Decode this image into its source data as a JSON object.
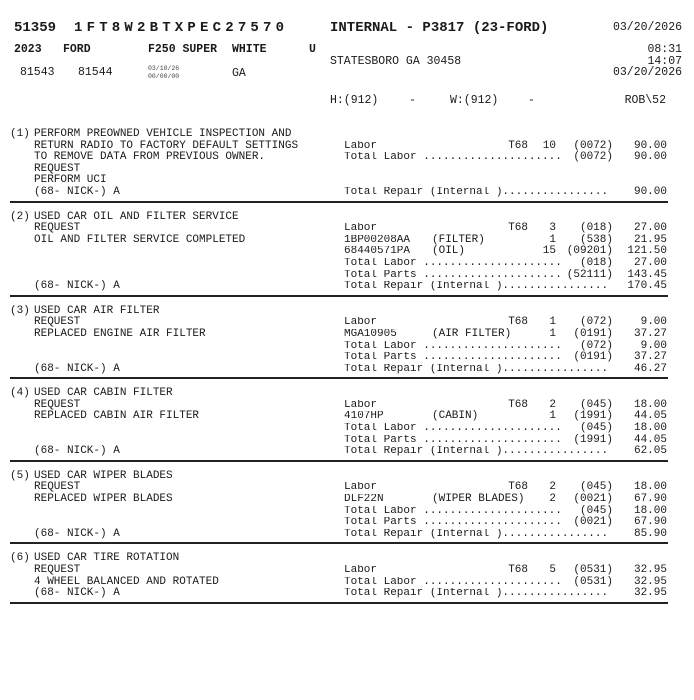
{
  "header": {
    "ro_number": "51359",
    "vin": "1FT8W2BTXPEC27570",
    "title": "INTERNAL - P3817 (23-FORD)",
    "date_top": "03/20/2026",
    "year": "2023",
    "make": "FORD",
    "model": "F250 SUPER",
    "color": "WHITE",
    "flag": "U",
    "city": "STATESBORO GA 30458",
    "time_1": "08:31",
    "time_2": "14:07",
    "date_2": "03/20/2026",
    "mileage_in": "81543",
    "mileage_out": "81544",
    "small_date_1": "03/10/26",
    "small_date_2": "00/00/00",
    "state": "GA",
    "home_phone": "H:(912)",
    "home_dash": "-",
    "work_phone": "W:(912)",
    "work_dash": "-",
    "advisor": "ROB\\52"
  },
  "jobs": [
    {
      "num": "(1)",
      "left": [
        "PERFORM PREOWNED VEHICLE INSPECTION AND",
        "RETURN RADIO TO FACTORY DEFAULT SETTINGS",
        "TO REMOVE DATA FROM PREVIOUS OWNER.",
        "REQUEST",
        "PERFORM UCI",
        "(68- NICK-) A"
      ],
      "right": [
        {},
        {
          "desc": "Labor",
          "tech": "T68",
          "qty": "10",
          "code": "(0072)",
          "amount": "90.00"
        },
        {
          "desc": "Total Labor .....................",
          "type": "tot",
          "code": "(0072)",
          "amount": "90.00"
        },
        {},
        {},
        {
          "desc": "Total Repair (Internal )................",
          "type": "rep",
          "amount": "90.00"
        }
      ]
    },
    {
      "num": "(2)",
      "left": [
        "USED CAR OIL AND FILTER SERVICE",
        "REQUEST",
        "OIL AND FILTER SERVICE COMPLETED",
        "",
        "",
        "",
        "(68- NICK-) A"
      ],
      "right": [
        {},
        {
          "desc": "Labor",
          "tech": "T68",
          "qty": "3",
          "code": "(018)",
          "amount": "27.00"
        },
        {
          "desc": "1BP00208AA",
          "note": "(FILTER)",
          "qty": "1",
          "code": "(538)",
          "amount": "21.95"
        },
        {
          "desc": "68440571PA",
          "note": "(OIL)",
          "qty": "15",
          "code": "(09201)",
          "amount": "121.50"
        },
        {
          "desc": "Total Labor .....................",
          "type": "tot",
          "code": "(018)",
          "amount": "27.00"
        },
        {
          "desc": "Total Parts .....................",
          "type": "tot",
          "code": "(52111)",
          "amount": "143.45"
        },
        {
          "desc": "Total Repair (Internal )................",
          "type": "rep",
          "amount": "170.45"
        }
      ]
    },
    {
      "num": "(3)",
      "left": [
        "USED CAR AIR FILTER",
        "REQUEST",
        "REPLACED ENGINE AIR FILTER",
        "",
        "",
        "(68- NICK-) A"
      ],
      "right": [
        {},
        {
          "desc": "Labor",
          "tech": "T68",
          "qty": "1",
          "code": "(072)",
          "amount": "9.00"
        },
        {
          "desc": "MGA10905",
          "note": "(AIR FILTER)",
          "qty": "1",
          "code": "(0191)",
          "amount": "37.27"
        },
        {
          "desc": "Total Labor .....................",
          "type": "tot",
          "code": "(072)",
          "amount": "9.00"
        },
        {
          "desc": "Total Parts .....................",
          "type": "tot",
          "code": "(0191)",
          "amount": "37.27"
        },
        {
          "desc": "Total Repair (Internal )................",
          "type": "rep",
          "amount": "46.27"
        }
      ]
    },
    {
      "num": "(4)",
      "left": [
        "USED CAR CABIN FILTER",
        "REQUEST",
        "REPLACED CABIN AIR FILTER",
        "",
        "",
        "(68- NICK-) A"
      ],
      "right": [
        {},
        {
          "desc": "Labor",
          "tech": "T68",
          "qty": "2",
          "code": "(045)",
          "amount": "18.00"
        },
        {
          "desc": "4107HP",
          "note": "(CABIN)",
          "qty": "1",
          "code": "(1991)",
          "amount": "44.05"
        },
        {
          "desc": "Total Labor .....................",
          "type": "tot",
          "code": "(045)",
          "amount": "18.00"
        },
        {
          "desc": "Total Parts .....................",
          "type": "tot",
          "code": "(1991)",
          "amount": "44.05"
        },
        {
          "desc": "Total Repair (Internal )................",
          "type": "rep",
          "amount": "62.05"
        }
      ]
    },
    {
      "num": "(5)",
      "left": [
        "USED CAR WIPER BLADES",
        "REQUEST",
        "REPLACED WIPER BLADES",
        "",
        "",
        "(68- NICK-) A"
      ],
      "right": [
        {},
        {
          "desc": "Labor",
          "tech": "T68",
          "qty": "2",
          "code": "(045)",
          "amount": "18.00"
        },
        {
          "desc": "DLF22N",
          "note": "(WIPER BLADES)",
          "qty": "2",
          "code": "(0021)",
          "amount": "67.90"
        },
        {
          "desc": "Total Labor .....................",
          "type": "tot",
          "code": "(045)",
          "amount": "18.00"
        },
        {
          "desc": "Total Parts .....................",
          "type": "tot",
          "code": "(0021)",
          "amount": "67.90"
        },
        {
          "desc": "Total Repair (Internal )................",
          "type": "rep",
          "amount": "85.90"
        }
      ]
    },
    {
      "num": "(6)",
      "left": [
        "USED CAR TIRE ROTATION",
        "REQUEST",
        "4 WHEEL BALANCED AND ROTATED",
        "(68- NICK-) A"
      ],
      "right": [
        {},
        {
          "desc": "Labor",
          "tech": "T68",
          "qty": "5",
          "code": "(0531)",
          "amount": "32.95"
        },
        {
          "desc": "Total Labor .....................",
          "type": "tot",
          "code": "(0531)",
          "amount": "32.95"
        },
        {
          "desc": "Total Repair (Internal )................",
          "type": "rep",
          "amount": "32.95"
        }
      ]
    }
  ]
}
